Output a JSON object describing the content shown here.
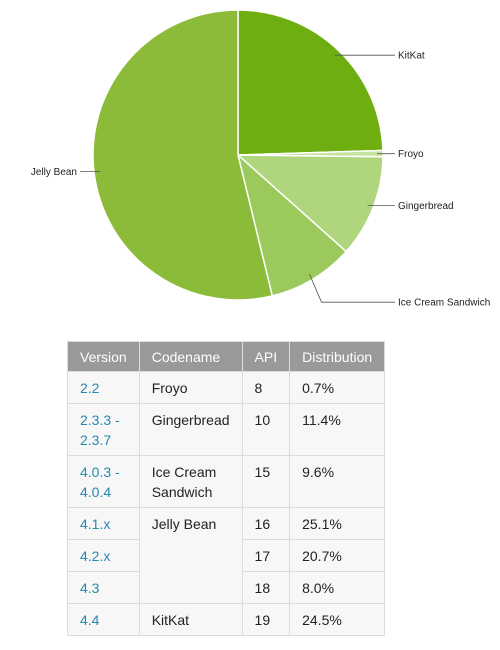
{
  "chart_data": {
    "type": "pie",
    "slices": [
      {
        "label": "KitKat",
        "value": 24.5,
        "color": "#6fae10"
      },
      {
        "label": "Froyo",
        "value": 0.7,
        "color": "#c6e29f"
      },
      {
        "label": "Gingerbread",
        "value": 11.4,
        "color": "#b0d67d"
      },
      {
        "label": "Ice Cream Sandwich",
        "value": 9.6,
        "color": "#9cc95b"
      },
      {
        "label": "Jelly Bean",
        "value": 53.8,
        "color": "#8bbb39"
      }
    ]
  },
  "table": {
    "headers": [
      "Version",
      "Codename",
      "API",
      "Distribution"
    ],
    "rows": [
      {
        "version": "2.2",
        "codename": "Froyo",
        "api": "8",
        "dist": "0.7%"
      },
      {
        "version": "2.3.3 - 2.3.7",
        "codename": "Gingerbread",
        "api": "10",
        "dist": "11.4%"
      },
      {
        "version": "4.0.3 - 4.0.4",
        "codename": "Ice Cream Sandwich",
        "api": "15",
        "dist": "9.6%"
      },
      {
        "version": "4.1.x",
        "codename": "Jelly Bean",
        "api": "16",
        "dist": "25.1%"
      },
      {
        "version": "4.2.x",
        "codename": "",
        "api": "17",
        "dist": "20.7%"
      },
      {
        "version": "4.3",
        "codename": "",
        "api": "18",
        "dist": "8.0%"
      },
      {
        "version": "4.4",
        "codename": "KitKat",
        "api": "19",
        "dist": "24.5%"
      }
    ]
  }
}
